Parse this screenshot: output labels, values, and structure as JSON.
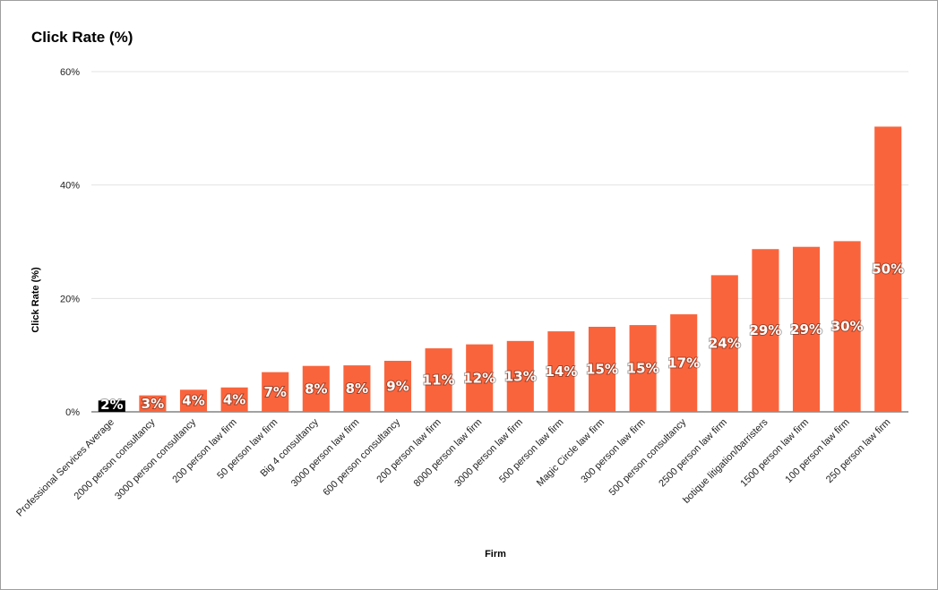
{
  "chart_data": {
    "type": "bar",
    "title": "Click Rate (%)",
    "xlabel": "Firm",
    "ylabel": "Click Rate (%)",
    "ylim": [
      0,
      60
    ],
    "yticks": [
      "0%",
      "20%",
      "40%",
      "60%"
    ],
    "ytick_values": [
      0,
      20,
      40,
      60
    ],
    "grid": true,
    "legend": "none",
    "categories": [
      "Professional Services Average",
      "2000 person consultancy",
      "3000 person consultancy",
      "200 person law firm",
      "50 person law firm",
      "Big 4 consultancy",
      "3000 person law firm",
      "600 person consultancy",
      "200 person law firm",
      "8000 person law firm",
      "3000 person law firm",
      "500 person law firm",
      "Magic Circle law firm",
      "300 person law firm",
      "500 person consultancy",
      "2500 person law firm",
      "botique litigation/barristers",
      "1500 person law firm",
      "100 person law firm",
      "250 person law firm"
    ],
    "values": [
      2,
      2.9,
      3.9,
      4.3,
      7,
      8.1,
      8.2,
      9,
      11.2,
      11.9,
      12.5,
      14.2,
      15,
      15.3,
      17.2,
      24.1,
      28.7,
      29.1,
      30.1,
      50.3
    ],
    "data_labels": [
      "2%",
      "3%",
      "4%",
      "4%",
      "7%",
      "8%",
      "8%",
      "9%",
      "11%",
      "12%",
      "13%",
      "14%",
      "15%",
      "15%",
      "17%",
      "24%",
      "29%",
      "29%",
      "30%",
      "50%"
    ],
    "bar_colors": [
      "#000000",
      "#fa643c",
      "#fa643c",
      "#fa643c",
      "#fa643c",
      "#fa643c",
      "#fa643c",
      "#fa643c",
      "#fa643c",
      "#fa643c",
      "#fa643c",
      "#fa643c",
      "#fa643c",
      "#fa643c",
      "#fa643c",
      "#fa643c",
      "#fa643c",
      "#fa643c",
      "#fa643c",
      "#fa643c"
    ]
  }
}
